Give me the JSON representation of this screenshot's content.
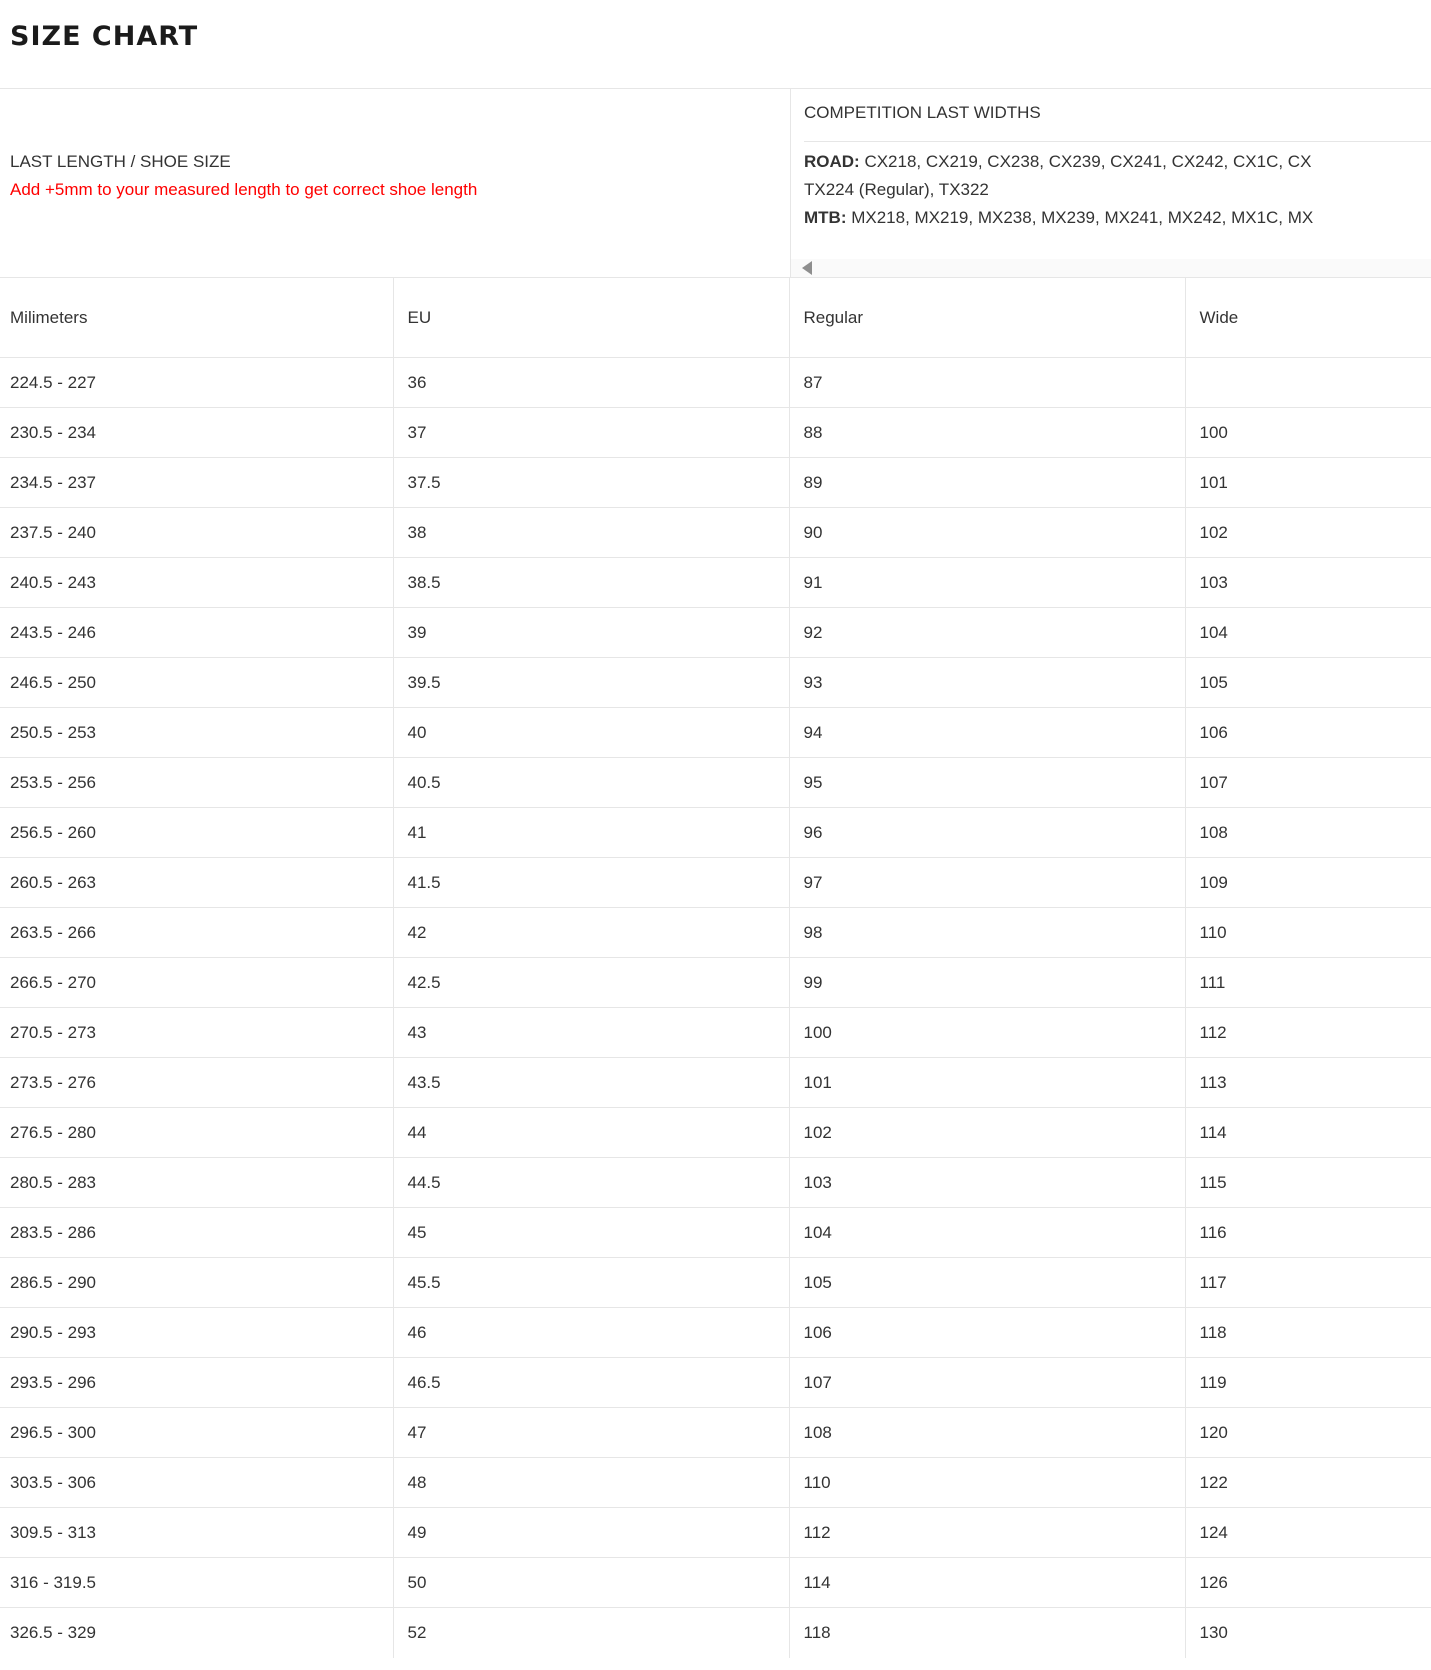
{
  "page": {
    "title": "SIZE CHART"
  },
  "colors": {
    "note_red": "#ff0000",
    "text": "#333333",
    "title": "#1b1b1b",
    "border": "#e6e6e6",
    "scrollbar_track": "#fafafa",
    "scrollbar_arrow": "#8e8e8e"
  },
  "header": {
    "left": {
      "title": "LAST LENGTH / SHOE SIZE",
      "note": "Add +5mm to your measured length to get correct shoe length"
    },
    "right": {
      "title": "COMPETITION LAST WIDTHS",
      "road_label": "ROAD:",
      "road_list": " CX218, CX219, CX238, CX239, CX241, CX242, CX1C, CX",
      "road_list2": "TX224 (Regular), TX322",
      "mtb_label": "MTB:",
      "mtb_list": " MX218, MX219, MX238, MX239, MX241, MX242, MX1C, MX"
    },
    "scrollbar": {
      "left_arrow_icon": "left-triangle"
    }
  },
  "table": {
    "columns": [
      "Milimeters",
      "EU",
      "Regular",
      "Wide"
    ],
    "rows": [
      [
        "224.5 - 227",
        "36",
        "87",
        ""
      ],
      [
        "230.5 - 234",
        "37",
        "88",
        "100"
      ],
      [
        "234.5 - 237",
        "37.5",
        "89",
        "101"
      ],
      [
        "237.5 - 240",
        "38",
        "90",
        "102"
      ],
      [
        "240.5 - 243",
        "38.5",
        "91",
        "103"
      ],
      [
        "243.5 - 246",
        "39",
        "92",
        "104"
      ],
      [
        "246.5 - 250",
        "39.5",
        "93",
        "105"
      ],
      [
        "250.5 - 253",
        "40",
        "94",
        "106"
      ],
      [
        "253.5 - 256",
        "40.5",
        "95",
        "107"
      ],
      [
        "256.5 - 260",
        "41",
        "96",
        "108"
      ],
      [
        "260.5 - 263",
        "41.5",
        "97",
        "109"
      ],
      [
        "263.5 - 266",
        "42",
        "98",
        "110"
      ],
      [
        "266.5 - 270",
        "42.5",
        "99",
        "111"
      ],
      [
        "270.5 - 273",
        "43",
        "100",
        "112"
      ],
      [
        "273.5 - 276",
        "43.5",
        "101",
        "113"
      ],
      [
        "276.5 - 280",
        "44",
        "102",
        "114"
      ],
      [
        "280.5 - 283",
        "44.5",
        "103",
        "115"
      ],
      [
        "283.5 - 286",
        "45",
        "104",
        "116"
      ],
      [
        "286.5 - 290",
        "45.5",
        "105",
        "117"
      ],
      [
        "290.5 - 293",
        "46",
        "106",
        "118"
      ],
      [
        "293.5 - 296",
        "46.5",
        "107",
        "119"
      ],
      [
        "296.5 - 300",
        "47",
        "108",
        "120"
      ],
      [
        "303.5 - 306",
        "48",
        "110",
        "122"
      ],
      [
        "309.5 - 313",
        "49",
        "112",
        "124"
      ],
      [
        "316 - 319.5",
        "50",
        "114",
        "126"
      ],
      [
        "326.5 - 329",
        "52",
        "118",
        "130"
      ]
    ]
  }
}
